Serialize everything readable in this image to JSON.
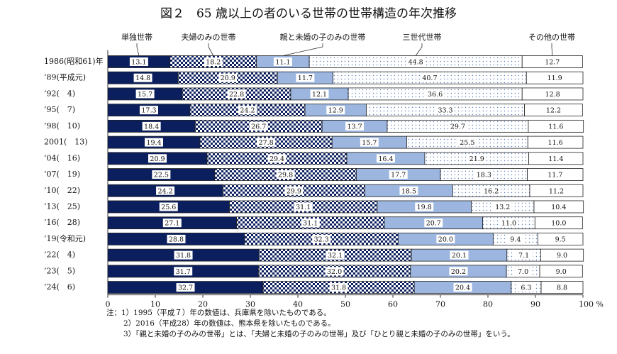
{
  "chart_data": {
    "type": "stacked_bar_horizontal",
    "title": "図２　65 歳以上の者のいる世帯の世帯構造の年次推移",
    "categories": [
      "1986(昭和61)年",
      "’89(平成元)",
      "’92(　4)",
      "’95(　7)",
      "’98(　10)",
      "2001(　13)",
      "’04(　16)",
      "’07(　19)",
      "’10(　22)",
      "’13(　25)",
      "’16(　28)",
      "’19(令和元)",
      "’22(　4)",
      "’23(　5)",
      "’24(　6)"
    ],
    "series": [
      {
        "name": "単独世帯",
        "color": "#0b1f5e",
        "pattern": "solid",
        "values": [
          13.1,
          14.8,
          15.7,
          17.3,
          18.4,
          19.4,
          20.9,
          22.5,
          24.2,
          25.6,
          27.1,
          28.8,
          31.8,
          31.7,
          32.7
        ],
        "value_labels": [
          "13.1",
          "14.8",
          "15.7",
          "17.3",
          "18.4",
          "19.4",
          "20.9",
          "22.5",
          "24.2",
          "25.6",
          "27.1",
          "28.8",
          "31.8",
          "31.7",
          "32.7"
        ]
      },
      {
        "name": "夫婦のみの世帯",
        "color": "#0b1f5e",
        "pattern": "check",
        "values": [
          18.2,
          20.9,
          22.8,
          24.2,
          26.7,
          27.8,
          29.4,
          29.8,
          29.9,
          31.1,
          31.1,
          32.3,
          32.1,
          32.0,
          31.8
        ],
        "value_labels": [
          "18.2",
          "20.9",
          "22.8",
          "24.2",
          "26.7",
          "27.8",
          "29.4",
          "29.8",
          "29.9",
          "31.1",
          "31.1",
          "32.3",
          "32.1",
          "32.0",
          "31.8"
        ]
      },
      {
        "name": "親と未婚の子のみの世帯",
        "color": "#9cb6e0",
        "pattern": "solid",
        "values": [
          11.1,
          11.7,
          12.1,
          12.9,
          13.7,
          15.7,
          16.4,
          17.7,
          18.5,
          19.8,
          20.7,
          20.0,
          20.1,
          20.2,
          20.4
        ],
        "value_labels": [
          "11.1",
          "11.7",
          "12.1",
          "12.9",
          "13.7",
          "15.7",
          "16.4",
          "17.7",
          "18.5",
          "19.8",
          "20.7",
          "20.0",
          "20.1",
          "20.2",
          "20.4"
        ]
      },
      {
        "name": "三世代世帯",
        "color": "#5b7fc0",
        "pattern": "dots",
        "values": [
          44.8,
          40.7,
          36.6,
          33.3,
          29.7,
          25.5,
          21.9,
          18.3,
          16.2,
          13.2,
          11.0,
          9.4,
          7.1,
          7.0,
          6.3
        ],
        "value_labels": [
          "44.8",
          "40.7",
          "36.6",
          "33.3",
          "29.7",
          "25.5",
          "21.9",
          "18.3",
          "16.2",
          "13.2",
          "11.0",
          "9.4",
          "7.1",
          "7.0",
          "6.3"
        ]
      },
      {
        "name": "その他の世帯",
        "color": "#ffffff",
        "pattern": "solid",
        "values": [
          12.7,
          11.9,
          12.8,
          12.2,
          11.6,
          11.6,
          11.4,
          11.7,
          11.2,
          10.4,
          10.0,
          9.5,
          9.0,
          9.0,
          8.8
        ],
        "value_labels": [
          "12.7",
          "11.9",
          "12.8",
          "12.2",
          "11.6",
          "11.6",
          "11.4",
          "11.7",
          "11.2",
          "10.4",
          "10.0",
          "9.5",
          "9.0",
          "9.0",
          "8.8"
        ]
      }
    ],
    "xlim": [
      0,
      100
    ],
    "xticks": [
      0,
      10,
      20,
      30,
      40,
      50,
      60,
      70,
      80,
      90,
      {
        "value": 100,
        "label": "100 %"
      }
    ],
    "notes": [
      "注：1）1995（平成７）年の数値は、兵庫県を除いたものである。",
      "2）2016（平成28）年の数値は、熊本県を除いたものである。",
      "3）「親と未婚の子のみの世帯」とは、「夫婦と未婚の子のみの世帯」及び「ひとり親と未婚の子のみの世帯」をいう。"
    ]
  }
}
